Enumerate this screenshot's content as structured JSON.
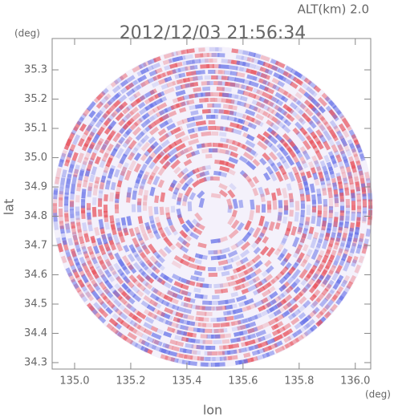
{
  "chart_data": {
    "type": "radar-field",
    "title": "2012/12/03 21:56:34",
    "annotation": "ALT(km) 2.0",
    "x_label": "lon",
    "y_label": "lat",
    "x_unit": "(deg)",
    "y_unit": "(deg)",
    "xlim": [
      134.92,
      136.055
    ],
    "ylim": [
      34.278,
      35.407
    ],
    "xticks": [
      {
        "value": 135,
        "label": "135.0"
      },
      135.2,
      135.4,
      135.6,
      135.8,
      {
        "value": 136,
        "label": "136.0"
      }
    ],
    "yticks": [
      34.3,
      34.4,
      34.5,
      34.6,
      34.7,
      34.8,
      34.9,
      {
        "value": 35,
        "label": "35.0"
      },
      35.1,
      35.2,
      35.3
    ]
  }
}
